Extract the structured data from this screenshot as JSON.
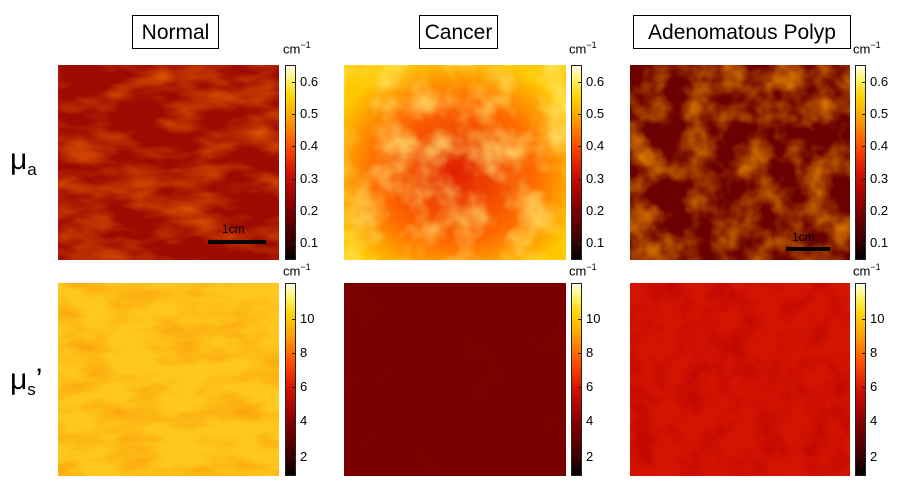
{
  "columns": [
    "Normal",
    "Cancer",
    "Adenomatous Polyp"
  ],
  "rows": [
    {
      "symbol": "μ",
      "subscript": "a",
      "suffix": ""
    },
    {
      "symbol": "μ",
      "subscript": "s",
      "suffix": "’"
    }
  ],
  "colorbar_unit_base": "cm",
  "colorbar_unit_exp": "−1",
  "top_ticks": [
    "0.6",
    "0.5",
    "0.4",
    "0.3",
    "0.2",
    "0.1"
  ],
  "bottom_ticks": [
    "10",
    "8",
    "6",
    "4",
    "2"
  ],
  "scalebar_label": "1cm",
  "colors": {
    "colormap": [
      "#000000",
      "#8a0000",
      "#ff4a00",
      "#ffd400",
      "#ffffe8"
    ]
  }
}
